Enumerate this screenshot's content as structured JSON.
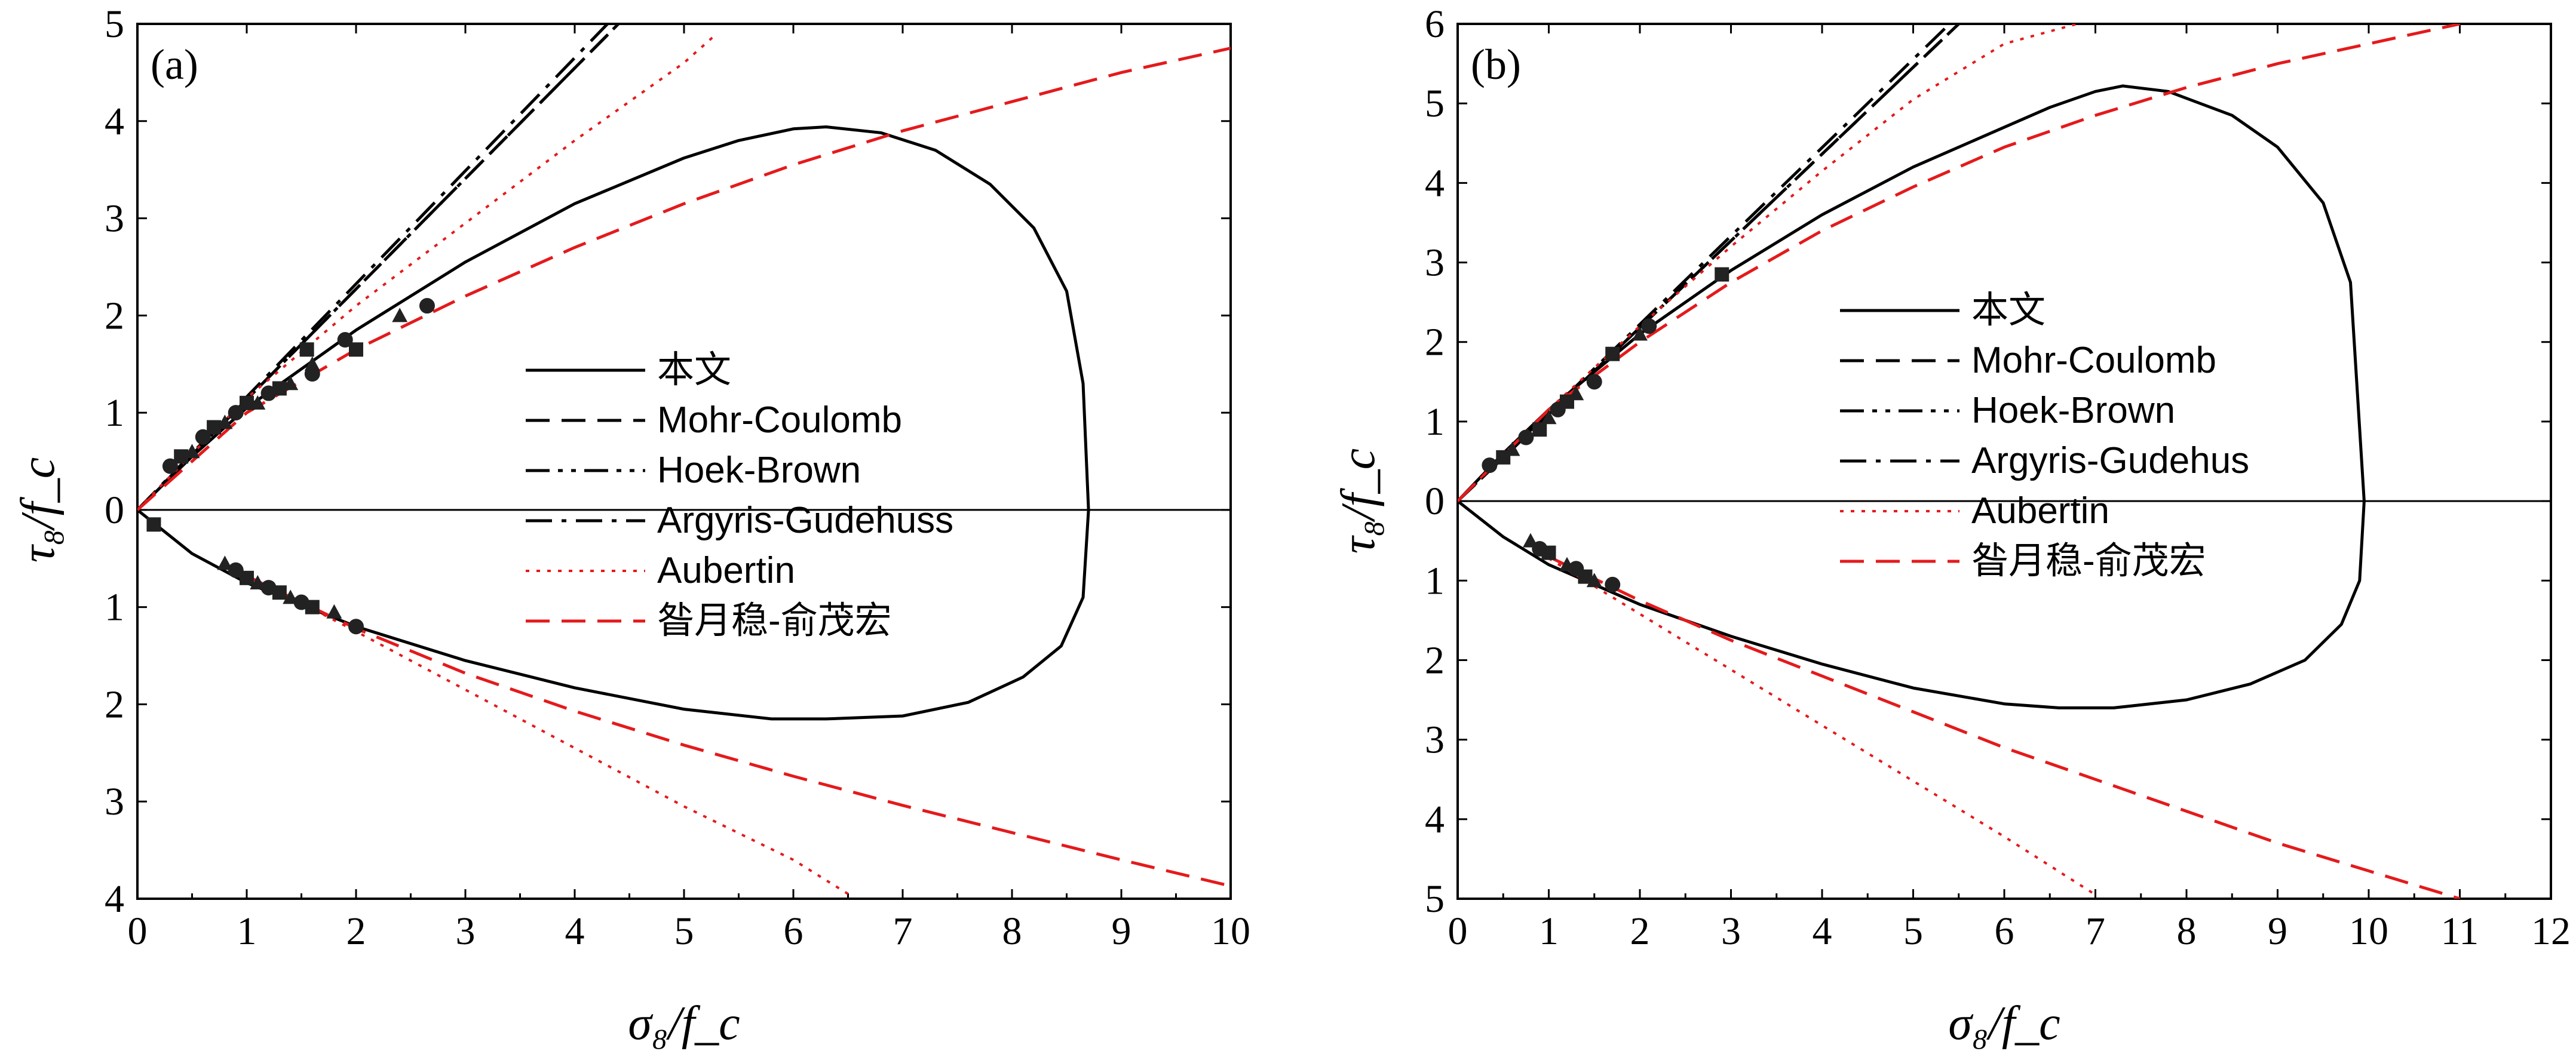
{
  "chart_data": [
    {
      "type": "line",
      "panel_label": "(a)",
      "xlim": [
        0,
        10
      ],
      "x_ticks": [
        0,
        1,
        2,
        3,
        4,
        5,
        6,
        7,
        8,
        9,
        10
      ],
      "ylim_upper": [
        0,
        5
      ],
      "ylim_lower": [
        0,
        4
      ],
      "y_ticks_upper": [
        0,
        1,
        2,
        3,
        4,
        5
      ],
      "y_ticks_lower": [
        1,
        2,
        3,
        4
      ],
      "xlabel": "σ₈/f_c",
      "ylabel": "τ₈/f_c",
      "legend": [
        "本文",
        "Mohr-Coulomb",
        "Hoek-Brown",
        "Argyris-Gudehuss",
        "Aubertin",
        "昝月稳-俞茂宏"
      ],
      "legend_position": "center",
      "series": [
        {
          "name": "本文",
          "style": "solid",
          "color": "#000000",
          "x": [
            0,
            0.5,
            1,
            2,
            3,
            4,
            5,
            5.5,
            6,
            6.3,
            6.8,
            7.3,
            7.8,
            8.2,
            8.5,
            8.65,
            8.7,
            8.65,
            8.45,
            8.1,
            7.6,
            7,
            6.3,
            5.8,
            5,
            4,
            3,
            2,
            1,
            0.5,
            0
          ],
          "y": [
            0,
            0.55,
            1.05,
            1.85,
            2.55,
            3.15,
            3.62,
            3.8,
            3.92,
            3.94,
            3.88,
            3.7,
            3.35,
            2.9,
            2.25,
            1.3,
            0,
            -0.9,
            -1.4,
            -1.72,
            -1.98,
            -2.12,
            -2.15,
            -2.15,
            -2.05,
            -1.83,
            -1.55,
            -1.2,
            -0.75,
            -0.45,
            0
          ]
        },
        {
          "name": "Mohr-Coulomb",
          "style": "dash",
          "color": "#000000",
          "x": [
            0,
            4.4,
            0,
            6.3
          ],
          "y": [
            0,
            5,
            null,
            -4
          ]
        },
        {
          "name": "Hoek-Brown",
          "style": "dashdotdot",
          "color": "#000000",
          "x": [
            0,
            4.4,
            0,
            6.3
          ],
          "y": [
            0,
            5,
            null,
            -4
          ]
        },
        {
          "name": "Argyris-Gudehuss",
          "style": "dashdot",
          "color": "#000000",
          "x": [
            0,
            4.3,
            0,
            6.1
          ],
          "y": [
            0,
            5,
            null,
            -4
          ]
        },
        {
          "name": "Aubertin",
          "style": "dot",
          "color": "#e41a1c",
          "x": [
            0,
            1,
            2,
            3,
            4,
            5,
            5.3,
            0,
            1,
            2,
            3,
            4,
            5,
            6,
            6.5
          ],
          "y": [
            0,
            1.15,
            2.1,
            2.95,
            3.8,
            4.6,
            4.9,
            null,
            -0.67,
            -1.25,
            -1.85,
            -2.45,
            -3.05,
            -3.6,
            -3.95
          ]
        },
        {
          "name": "昝月稳-俞茂宏",
          "style": "dash",
          "color": "#e41a1c",
          "x": [
            0,
            1,
            2,
            3,
            4,
            5,
            6,
            7,
            8,
            9,
            10,
            0,
            1,
            2,
            3,
            4,
            5,
            6,
            7,
            8,
            9,
            10
          ],
          "y": [
            0,
            1.0,
            1.65,
            2.2,
            2.7,
            3.15,
            3.55,
            3.9,
            4.2,
            4.5,
            4.75,
            null,
            -0.68,
            -1.22,
            -1.68,
            -2.07,
            -2.42,
            -2.74,
            -3.04,
            -3.32,
            -3.6,
            -3.87
          ]
        }
      ],
      "scatter_points": [
        {
          "x": 0.3,
          "y": 0.45
        },
        {
          "x": 0.4,
          "y": 0.55
        },
        {
          "x": 0.5,
          "y": 0.6
        },
        {
          "x": 0.6,
          "y": 0.75
        },
        {
          "x": 0.7,
          "y": 0.85
        },
        {
          "x": 0.8,
          "y": 0.9
        },
        {
          "x": 0.9,
          "y": 1.0
        },
        {
          "x": 1.0,
          "y": 1.1
        },
        {
          "x": 1.1,
          "y": 1.1
        },
        {
          "x": 1.2,
          "y": 1.2
        },
        {
          "x": 1.3,
          "y": 1.25
        },
        {
          "x": 1.4,
          "y": 1.3
        },
        {
          "x": 1.6,
          "y": 1.4
        },
        {
          "x": 1.55,
          "y": 1.65
        },
        {
          "x": 1.6,
          "y": 1.5
        },
        {
          "x": 1.9,
          "y": 1.75
        },
        {
          "x": 2.0,
          "y": 1.65
        },
        {
          "x": 2.4,
          "y": 2.0
        },
        {
          "x": 2.65,
          "y": 2.1
        },
        {
          "x": 0.15,
          "y": -0.15
        },
        {
          "x": 0.8,
          "y": -0.55
        },
        {
          "x": 0.9,
          "y": -0.62
        },
        {
          "x": 1.0,
          "y": -0.7
        },
        {
          "x": 1.1,
          "y": -0.75
        },
        {
          "x": 1.2,
          "y": -0.8
        },
        {
          "x": 1.3,
          "y": -0.85
        },
        {
          "x": 1.4,
          "y": -0.9
        },
        {
          "x": 1.5,
          "y": -0.95
        },
        {
          "x": 1.6,
          "y": -1.0
        },
        {
          "x": 1.8,
          "y": -1.05
        },
        {
          "x": 2.0,
          "y": -1.2
        }
      ]
    },
    {
      "type": "line",
      "panel_label": "(b)",
      "xlim": [
        0,
        12
      ],
      "x_ticks": [
        0,
        1,
        2,
        3,
        4,
        5,
        6,
        7,
        8,
        9,
        10,
        11,
        12
      ],
      "ylim_upper": [
        0,
        6
      ],
      "ylim_lower": [
        0,
        5
      ],
      "y_ticks_upper": [
        0,
        1,
        2,
        3,
        4,
        5,
        6
      ],
      "y_ticks_lower": [
        1,
        2,
        3,
        4,
        5
      ],
      "xlabel": "σ₈/f_c",
      "ylabel": "τ₈/f_c",
      "legend": [
        "本文",
        "Mohr-Coulomb",
        "Hoek-Brown",
        "Argyris-Gudehus",
        "Aubertin",
        "昝月稳-俞茂宏"
      ],
      "legend_position": "center-right",
      "series": [
        {
          "name": "本文",
          "style": "solid",
          "color": "#000000",
          "x": [
            0,
            0.5,
            1,
            2,
            3,
            4,
            5,
            6,
            6.5,
            7,
            7.3,
            7.8,
            8.5,
            9,
            9.5,
            9.8,
            9.95,
            9.9,
            9.7,
            9.3,
            8.7,
            8,
            7.2,
            6.6,
            6,
            5,
            4,
            3,
            2,
            1,
            0.5,
            0
          ],
          "y": [
            0,
            0.6,
            1.15,
            2.1,
            2.9,
            3.6,
            4.2,
            4.7,
            4.95,
            5.15,
            5.22,
            5.15,
            4.85,
            4.45,
            3.75,
            2.75,
            0,
            -1.0,
            -1.55,
            -2.0,
            -2.3,
            -2.5,
            -2.6,
            -2.6,
            -2.55,
            -2.35,
            -2.05,
            -1.7,
            -1.3,
            -0.8,
            -0.45,
            0
          ]
        },
        {
          "name": "Mohr-Coulomb",
          "style": "dash",
          "color": "#000000",
          "x": [
            0,
            5.5,
            0,
            7.7
          ],
          "y": [
            0,
            6,
            null,
            -5
          ]
        },
        {
          "name": "Hoek-Brown",
          "style": "dashdotdot",
          "color": "#000000",
          "x": [
            0,
            5.5,
            0,
            7.4
          ],
          "y": [
            0,
            6,
            null,
            -5
          ]
        },
        {
          "name": "Argyris-Gudehus",
          "style": "dashdot",
          "color": "#000000",
          "x": [
            0,
            5.4,
            0,
            7.2
          ],
          "y": [
            0,
            6,
            null,
            -5
          ]
        },
        {
          "name": "Aubertin",
          "style": "dot",
          "color": "#e41a1c",
          "x": [
            0,
            1,
            2,
            3,
            4,
            5,
            6,
            6.8,
            0,
            1,
            2,
            3,
            4,
            5,
            6,
            7
          ],
          "y": [
            0,
            1.15,
            2.2,
            3.2,
            4.15,
            5.05,
            5.75,
            6,
            null,
            -0.72,
            -1.42,
            -2.12,
            -2.82,
            -3.52,
            -4.22,
            -4.95
          ]
        },
        {
          "name": "昝月稳-俞茂宏",
          "style": "dash",
          "color": "#e41a1c",
          "x": [
            0,
            1,
            2,
            3,
            4,
            5,
            6,
            7,
            8,
            9,
            10,
            11,
            0,
            1,
            2,
            3,
            4,
            5,
            6,
            7,
            8,
            9,
            10,
            11
          ],
          "y": [
            0,
            1.15,
            2.0,
            2.75,
            3.4,
            3.95,
            4.45,
            4.85,
            5.2,
            5.5,
            5.75,
            6.0,
            null,
            -0.7,
            -1.25,
            -1.75,
            -2.2,
            -2.65,
            -3.1,
            -3.5,
            -3.9,
            -4.3,
            -4.65,
            -5.0
          ]
        }
      ],
      "scatter_points": [
        {
          "x": 0.35,
          "y": 0.45
        },
        {
          "x": 0.5,
          "y": 0.55
        },
        {
          "x": 0.6,
          "y": 0.65
        },
        {
          "x": 0.75,
          "y": 0.8
        },
        {
          "x": 0.9,
          "y": 0.9
        },
        {
          "x": 1.0,
          "y": 1.05
        },
        {
          "x": 1.1,
          "y": 1.15
        },
        {
          "x": 1.2,
          "y": 1.25
        },
        {
          "x": 1.3,
          "y": 1.35
        },
        {
          "x": 1.5,
          "y": 1.5
        },
        {
          "x": 1.7,
          "y": 1.85
        },
        {
          "x": 2.0,
          "y": 2.1
        },
        {
          "x": 2.1,
          "y": 2.2
        },
        {
          "x": 2.9,
          "y": 2.85
        },
        {
          "x": 0.8,
          "y": -0.5
        },
        {
          "x": 0.9,
          "y": -0.6
        },
        {
          "x": 1.0,
          "y": -0.65
        },
        {
          "x": 1.2,
          "y": -0.8
        },
        {
          "x": 1.3,
          "y": -0.85
        },
        {
          "x": 1.4,
          "y": -0.95
        },
        {
          "x": 1.5,
          "y": -1.0
        },
        {
          "x": 1.7,
          "y": -1.05
        }
      ]
    }
  ]
}
